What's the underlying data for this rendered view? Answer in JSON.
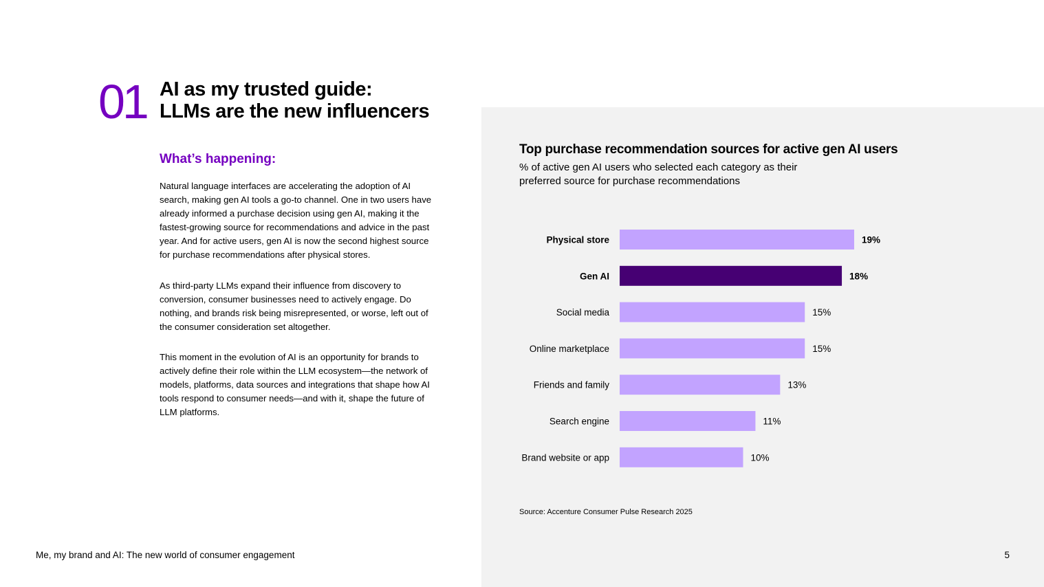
{
  "colors": {
    "accent": "#7500c0",
    "bar_default": "#c2a3ff",
    "bar_highlight": "#460073",
    "panel_bg": "#f2f2f2"
  },
  "section": {
    "number": "01",
    "title_line1": "AI as my trusted guide:",
    "title_line2": "LLMs are the new influencers"
  },
  "content": {
    "subhead": "What’s happening:",
    "paragraphs": [
      "Natural language interfaces are accelerating the adoption of AI search, making gen AI tools a go-to channel. One in two users have already informed a purchase decision using gen AI, making it the fastest-growing source for recommendations and advice in the past year. And for active users, gen AI is now the second highest source for purchase recommendations after physical stores.",
      "As third-party LLMs expand their influence from discovery to conversion, consumer businesses need to actively engage. Do nothing, and brands risk being misrepresented, or worse, left out of the consumer consideration set altogether.",
      "This moment in the evolution of AI is an opportunity for brands to actively define their role within the LLM ecosystem—the network of models, platforms, data sources and integrations that shape how AI tools respond to consumer needs—and with it, shape the future of LLM platforms."
    ]
  },
  "chart_data": {
    "type": "bar",
    "orientation": "horizontal",
    "title": "Top purchase recommendation sources for active gen AI users",
    "subtitle": "% of active gen AI users who selected each category as their preferred source for purchase recommendations",
    "categories": [
      "Physical store",
      "Gen AI",
      "Social media",
      "Online marketplace",
      "Friends and family",
      "Search engine",
      "Brand website or app"
    ],
    "values": [
      19,
      18,
      15,
      15,
      13,
      11,
      10
    ],
    "value_labels": [
      "19%",
      "18%",
      "15%",
      "15%",
      "13%",
      "11%",
      "10%"
    ],
    "bold": [
      true,
      true,
      false,
      false,
      false,
      false,
      false
    ],
    "highlight_index": 1,
    "xlim": [
      0,
      19
    ],
    "xlabel": "",
    "ylabel": "",
    "grid": false,
    "source": "Source: Accenture Consumer Pulse Research 2025"
  },
  "footer": {
    "title": "Me, my brand and AI: The new world of consumer engagement",
    "page": "5"
  }
}
